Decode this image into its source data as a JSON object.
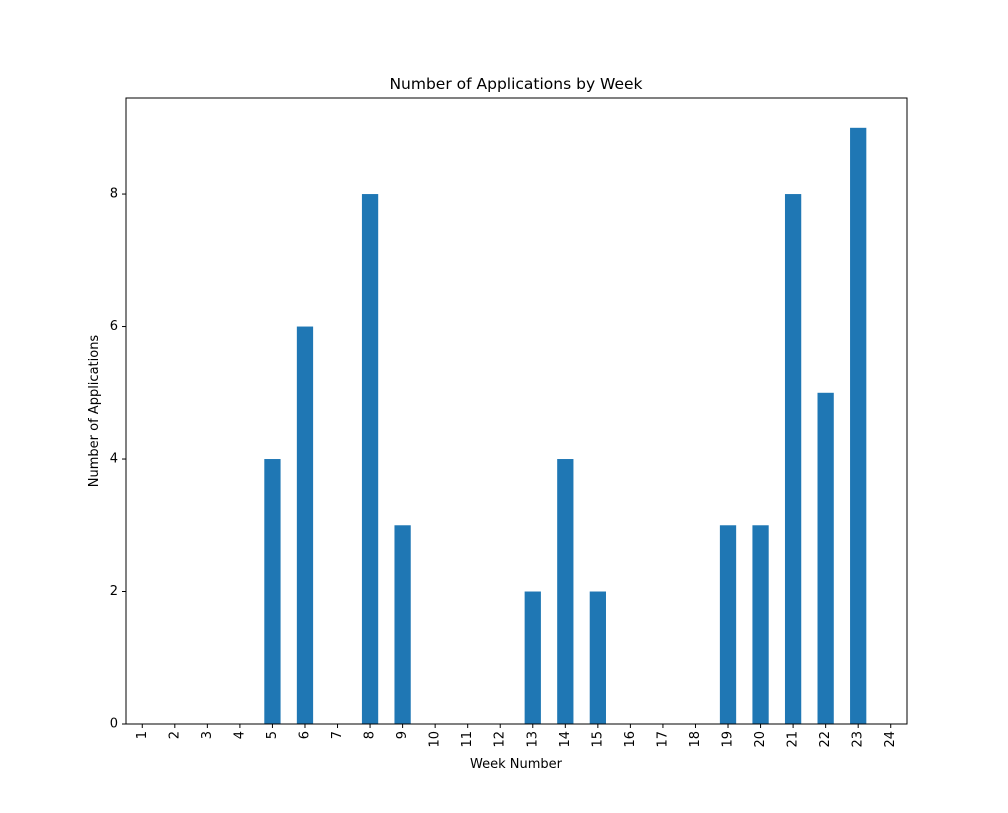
{
  "chart_data": {
    "type": "bar",
    "title": "Number of Applications by Week",
    "xlabel": "Week Number",
    "ylabel": "Number of Applications",
    "categories": [
      "1",
      "2",
      "3",
      "4",
      "5",
      "6",
      "7",
      "8",
      "9",
      "10",
      "11",
      "12",
      "13",
      "14",
      "15",
      "16",
      "17",
      "18",
      "19",
      "20",
      "21",
      "22",
      "23",
      "24"
    ],
    "values": [
      0,
      0,
      0,
      0,
      4,
      6,
      0,
      8,
      3,
      0,
      0,
      0,
      2,
      4,
      2,
      0,
      0,
      0,
      3,
      3,
      8,
      5,
      9,
      0
    ],
    "ylim": [
      0,
      9.45
    ],
    "yticks": [
      0,
      2,
      4,
      6,
      8
    ],
    "ytick_labels": [
      "0",
      "2",
      "4",
      "6",
      "8"
    ],
    "bar_color": "#1f77b4",
    "grid": false,
    "legend": false
  }
}
